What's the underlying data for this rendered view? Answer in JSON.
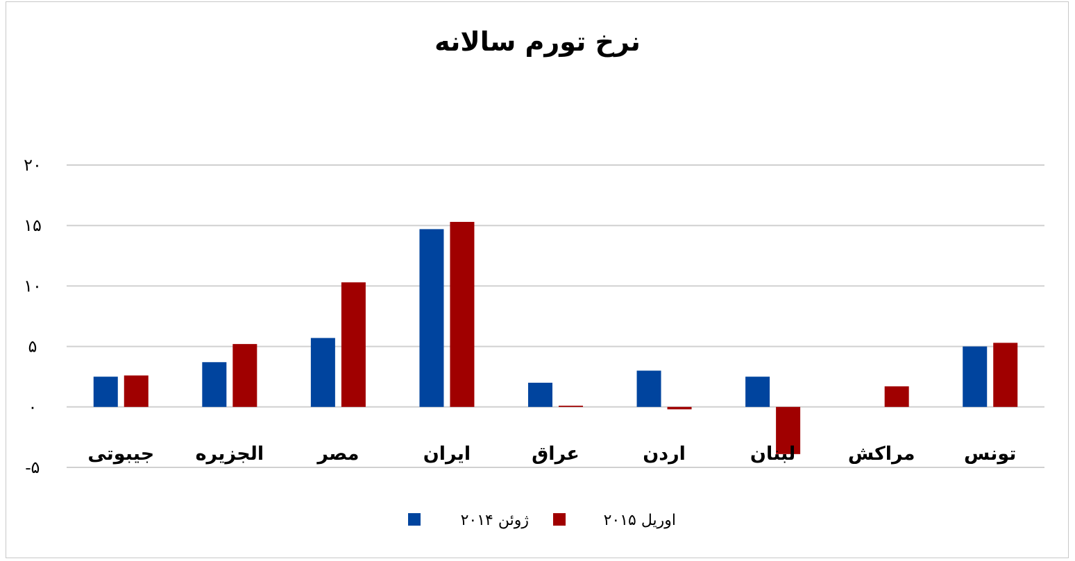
{
  "chart_data": {
    "type": "bar",
    "title": "نرخ تورم سالانه",
    "categories": [
      "جیبوتی",
      "الجزیره",
      "مصر",
      "ایران",
      "عراق",
      "اردن",
      "لبنان",
      "مراکش",
      "تونس"
    ],
    "series": [
      {
        "name": "ژوئن ۲۰۱۴",
        "color": "#00449e",
        "values": [
          2.5,
          3.7,
          5.7,
          14.7,
          2.0,
          3.0,
          2.5,
          0,
          5.0
        ]
      },
      {
        "name": "اوریل ۲۰۱۵",
        "color": "#a00000",
        "values": [
          2.6,
          5.2,
          10.3,
          15.3,
          0.1,
          -0.2,
          -3.9,
          1.7,
          5.3
        ]
      }
    ],
    "y_tick_labels": [
      "-۵",
      "۰",
      "۵",
      "۱۰",
      "۱۵",
      "۲۰"
    ],
    "y_tick_values": [
      -5,
      0,
      5,
      10,
      15,
      20
    ],
    "ylim": [
      -5,
      20
    ],
    "grid": true,
    "legend_position": "bottom",
    "gridline_color": "#d0d0d0"
  }
}
